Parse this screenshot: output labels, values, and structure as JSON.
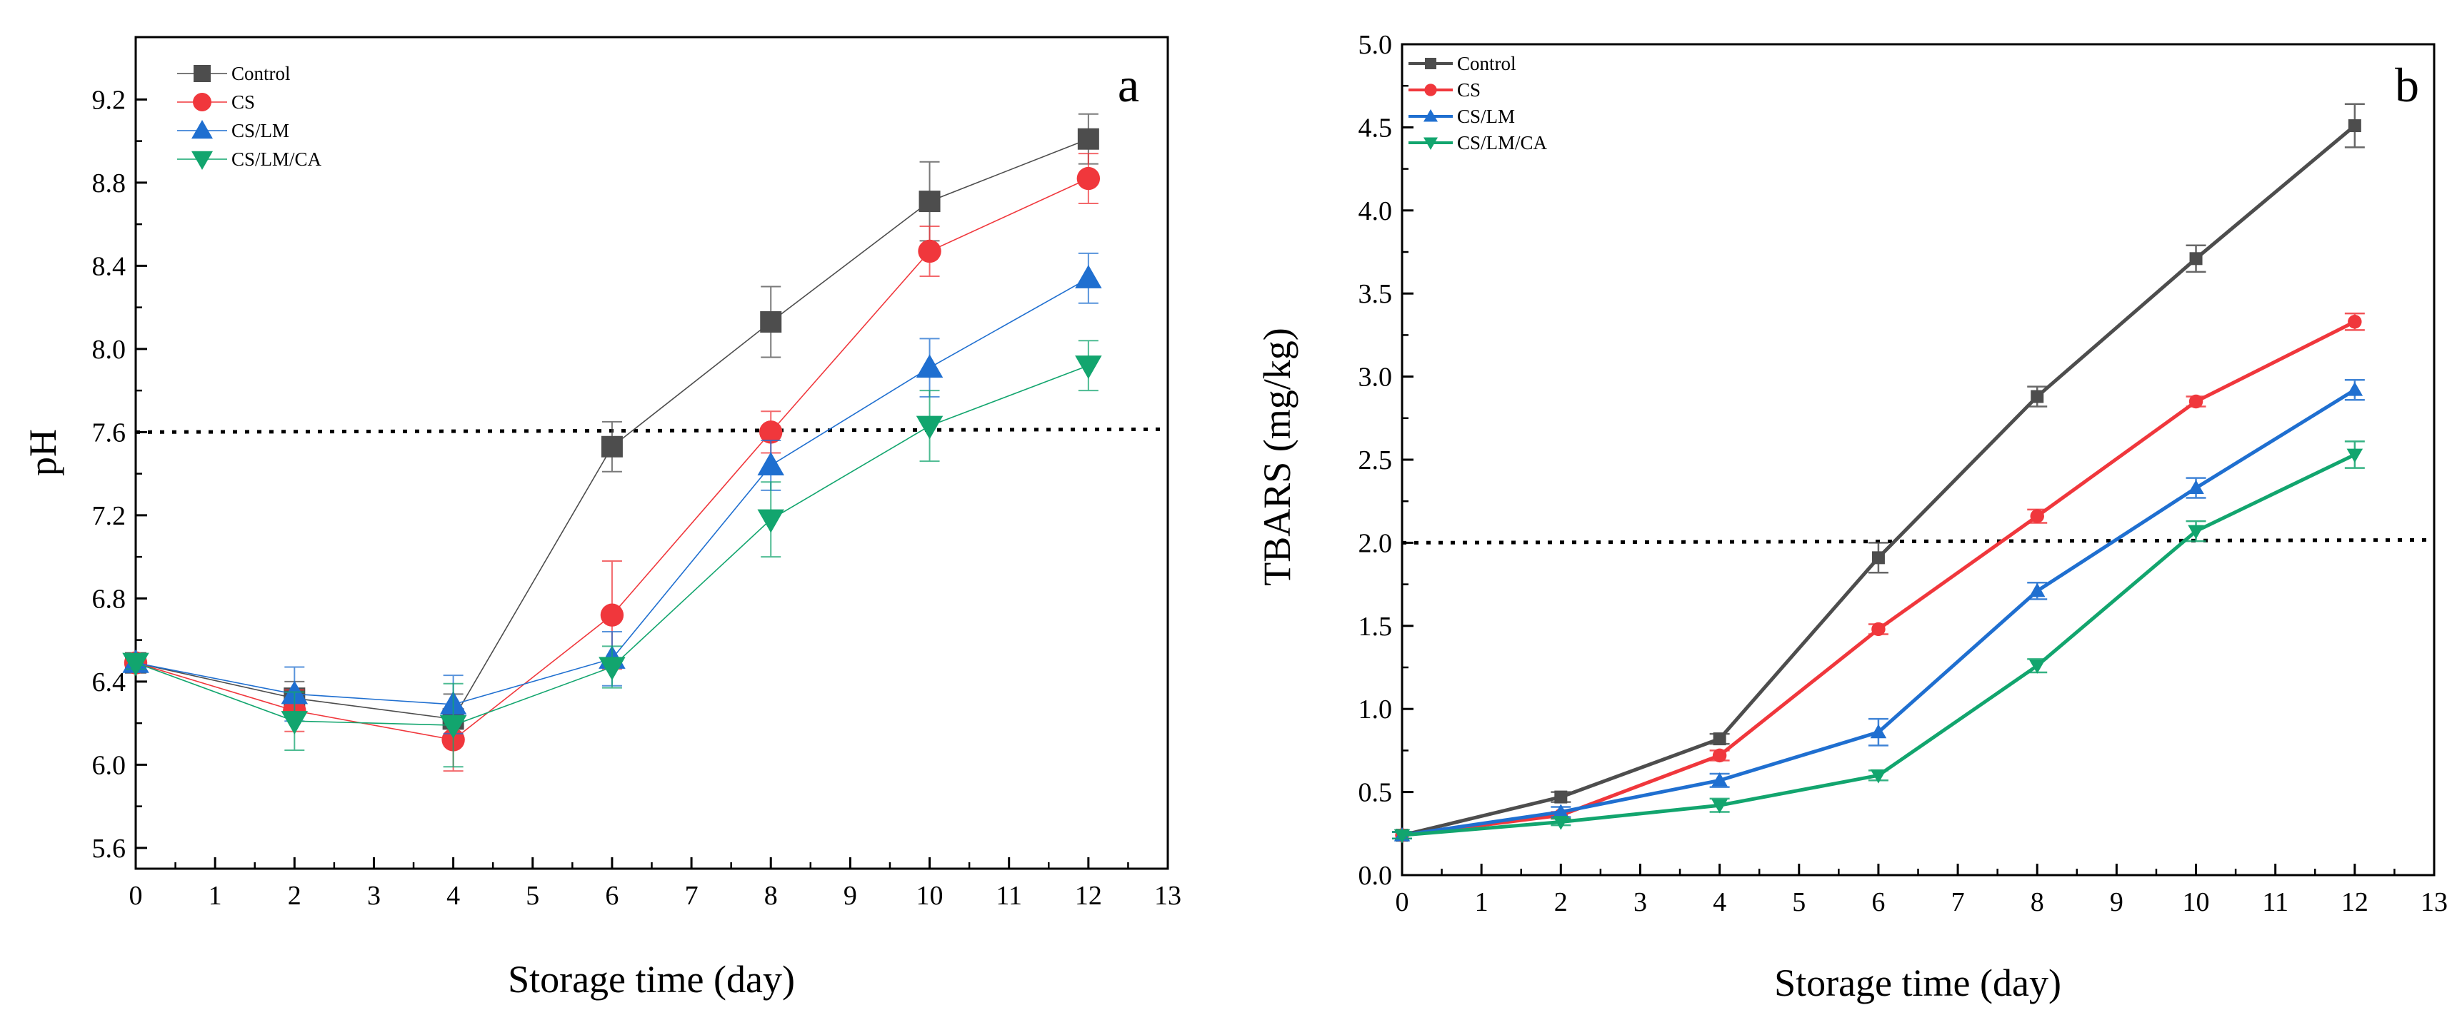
{
  "chart_data": [
    {
      "id": "a",
      "type": "line",
      "panel_label": "a",
      "xlabel": "Storage time (day)",
      "ylabel": "pH",
      "xlim": [
        0,
        13
      ],
      "ylim": [
        5.5,
        9.5
      ],
      "xticks": [
        0,
        1,
        2,
        3,
        4,
        5,
        6,
        7,
        8,
        9,
        10,
        11,
        12,
        13
      ],
      "yticks": [
        5.6,
        6.0,
        6.4,
        6.8,
        7.2,
        7.6,
        8.0,
        8.4,
        8.8,
        9.2
      ],
      "ytick_labels": [
        "5.6",
        "6.0",
        "6.4",
        "6.8",
        "7.2",
        "7.6",
        "8.0",
        "8.4",
        "8.8",
        "9.2"
      ],
      "threshold": 7.6,
      "legend_position": "top-left",
      "x": [
        0,
        2,
        4,
        6,
        8,
        10,
        12
      ],
      "series": [
        {
          "name": "Control",
          "color": "#4d4d4d",
          "marker": "square",
          "values": [
            6.49,
            6.32,
            6.22,
            7.53,
            8.13,
            8.71,
            9.01
          ],
          "errors": [
            0.03,
            0.08,
            0.12,
            0.12,
            0.17,
            0.19,
            0.12
          ]
        },
        {
          "name": "CS",
          "color": "#f0373c",
          "marker": "circle",
          "values": [
            6.49,
            6.26,
            6.12,
            6.72,
            7.6,
            8.47,
            8.82
          ],
          "errors": [
            0.03,
            0.1,
            0.15,
            0.26,
            0.1,
            0.12,
            0.12
          ]
        },
        {
          "name": "CS/LM",
          "color": "#1f6fd0",
          "marker": "triangle-up",
          "values": [
            6.49,
            6.34,
            6.29,
            6.51,
            7.44,
            7.91,
            8.34
          ],
          "errors": [
            0.03,
            0.13,
            0.14,
            0.13,
            0.12,
            0.14,
            0.12
          ]
        },
        {
          "name": "CS/LM/CA",
          "color": "#12a56e",
          "marker": "triangle-down",
          "values": [
            6.49,
            6.21,
            6.19,
            6.47,
            7.18,
            7.63,
            7.92
          ],
          "errors": [
            0.03,
            0.14,
            0.2,
            0.1,
            0.18,
            0.17,
            0.12
          ]
        }
      ]
    },
    {
      "id": "b",
      "type": "line",
      "panel_label": "b",
      "xlabel": "Storage time (day)",
      "ylabel": "TBARS (mg/kg)",
      "xlim": [
        0,
        13
      ],
      "ylim": [
        0,
        5
      ],
      "xticks": [
        0,
        1,
        2,
        3,
        4,
        5,
        6,
        7,
        8,
        9,
        10,
        11,
        12,
        13
      ],
      "yticks": [
        0.0,
        0.5,
        1.0,
        1.5,
        2.0,
        2.5,
        3.0,
        3.5,
        4.0,
        4.5,
        5.0
      ],
      "ytick_labels": [
        "0.0",
        "0.5",
        "1.0",
        "1.5",
        "2.0",
        "2.5",
        "3.0",
        "3.5",
        "4.0",
        "4.5",
        "5.0"
      ],
      "threshold": 2.0,
      "legend_position": "top-left",
      "x": [
        0,
        2,
        4,
        6,
        8,
        10,
        12
      ],
      "series": [
        {
          "name": "Control",
          "color": "#4d4d4d",
          "marker": "square",
          "values": [
            0.24,
            0.47,
            0.82,
            1.91,
            2.88,
            3.71,
            4.51
          ],
          "errors": [
            0.02,
            0.03,
            0.03,
            0.09,
            0.06,
            0.08,
            0.13
          ]
        },
        {
          "name": "CS",
          "color": "#f0373c",
          "marker": "circle",
          "values": [
            0.24,
            0.36,
            0.72,
            1.48,
            2.16,
            2.85,
            3.33
          ],
          "errors": [
            0.02,
            0.02,
            0.03,
            0.03,
            0.04,
            0.03,
            0.05
          ]
        },
        {
          "name": "CS/LM",
          "color": "#1f6fd0",
          "marker": "triangle-up",
          "values": [
            0.24,
            0.38,
            0.57,
            0.86,
            1.71,
            2.33,
            2.92
          ],
          "errors": [
            0.02,
            0.03,
            0.04,
            0.08,
            0.05,
            0.06,
            0.06
          ]
        },
        {
          "name": "CS/LM/CA",
          "color": "#12a56e",
          "marker": "triangle-down",
          "values": [
            0.24,
            0.32,
            0.42,
            0.6,
            1.26,
            2.07,
            2.53
          ],
          "errors": [
            0.02,
            0.02,
            0.04,
            0.03,
            0.04,
            0.06,
            0.08
          ]
        }
      ]
    }
  ]
}
